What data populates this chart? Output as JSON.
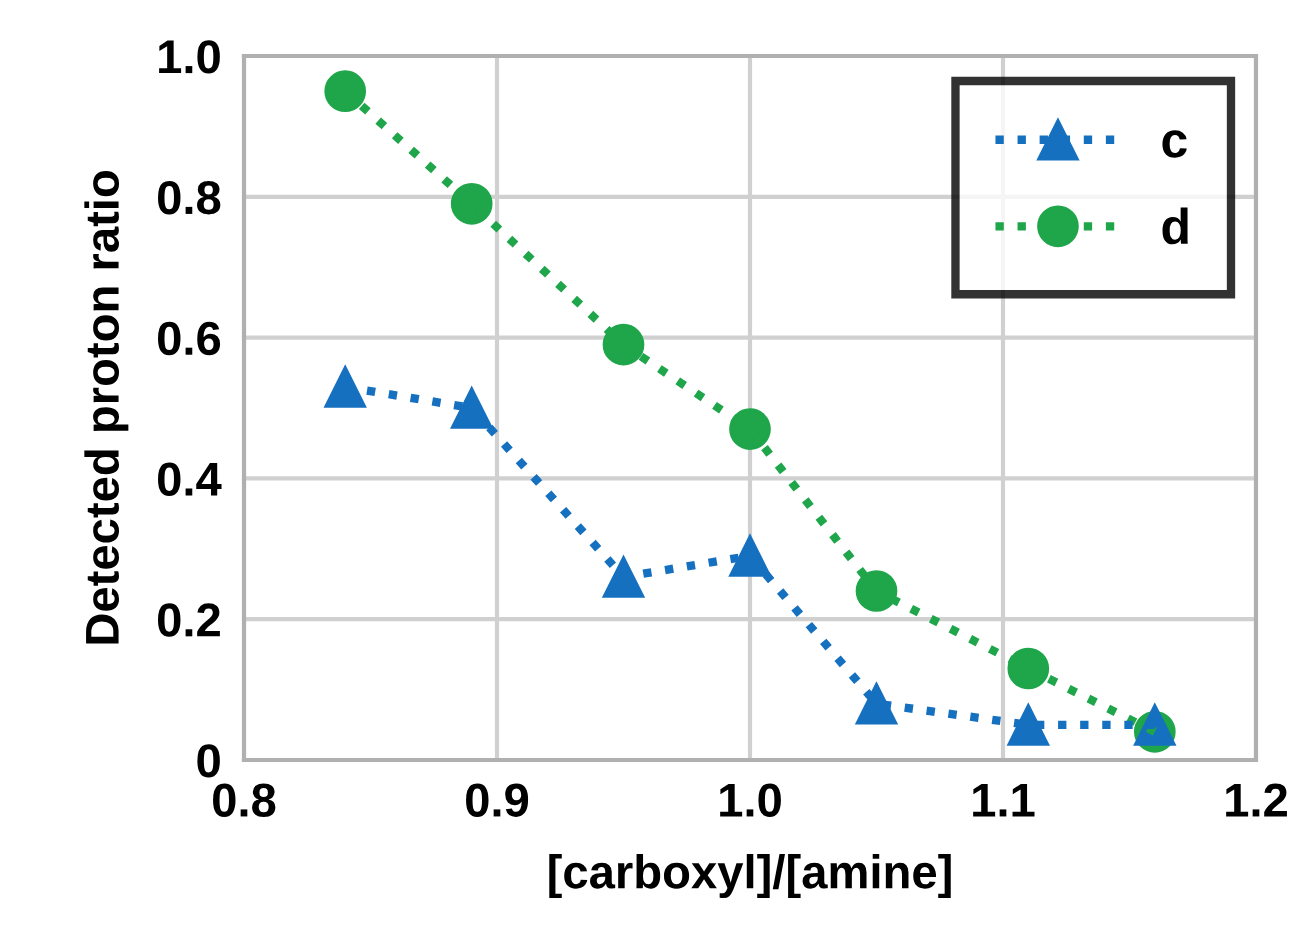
{
  "chart_data": {
    "type": "line",
    "xlabel": "[carboxyl]/[amine]",
    "ylabel": "Detected proton ratio",
    "xlim": [
      0.8,
      1.2
    ],
    "xticks": [
      {
        "value": 0.8,
        "label": "0.8"
      },
      {
        "value": 0.9,
        "label": "0.9"
      },
      {
        "value": 1.0,
        "label": "1.0"
      },
      {
        "value": 1.1,
        "label": "1.1"
      },
      {
        "value": 1.2,
        "label": "1.2"
      }
    ],
    "ylim": [
      0,
      1.0
    ],
    "yticks": [
      0,
      {
        "value": 0.2,
        "label": "0.2"
      },
      {
        "value": 0.4,
        "label": "0.4"
      },
      {
        "value": 0.6,
        "label": "0.6"
      },
      {
        "value": 0.8,
        "label": "0.8"
      },
      {
        "value": 1.0,
        "label": "1.0"
      }
    ],
    "x": [
      0.84,
      0.89,
      0.95,
      1.0,
      1.05,
      1.11,
      1.16
    ],
    "grid": true,
    "legend": "top right",
    "line_style": "dotted",
    "series": [
      {
        "name": "c",
        "color": "#1670c0",
        "marker": "triangle",
        "values": [
          0.53,
          0.5,
          0.26,
          0.29,
          0.08,
          0.05,
          0.05
        ]
      },
      {
        "name": "d",
        "color": "#1fa54a",
        "marker": "circle",
        "values": [
          0.95,
          0.79,
          0.59,
          0.47,
          0.24,
          0.13,
          0.04
        ]
      }
    ]
  }
}
